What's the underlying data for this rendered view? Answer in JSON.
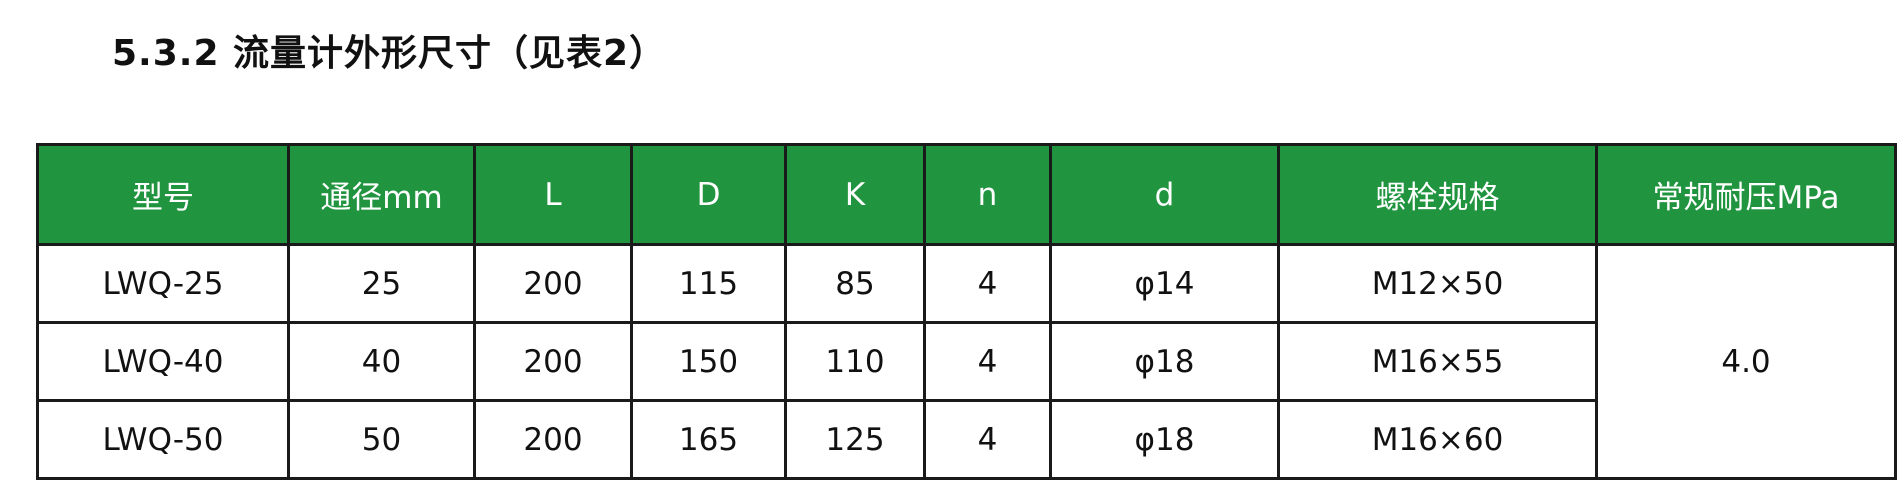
{
  "title": "5.3.2 流量计外形尺寸（见表2）",
  "colors": {
    "header_bg": "#21943f",
    "header_text": "#ffffff",
    "border": "#1a1a1a"
  },
  "table": {
    "headers": [
      "型号",
      "通径mm",
      "L",
      "D",
      "K",
      "n",
      "d",
      "螺栓规格",
      "常规耐压MPa"
    ],
    "rows": [
      [
        "LWQ-25",
        "25",
        "200",
        "115",
        "85",
        "4",
        "φ14",
        "M12×50"
      ],
      [
        "LWQ-40",
        "40",
        "200",
        "150",
        "110",
        "4",
        "φ18",
        "M16×55"
      ],
      [
        "LWQ-50",
        "50",
        "200",
        "165",
        "125",
        "4",
        "φ18",
        "M16×60"
      ]
    ],
    "pressure": "4.0"
  }
}
